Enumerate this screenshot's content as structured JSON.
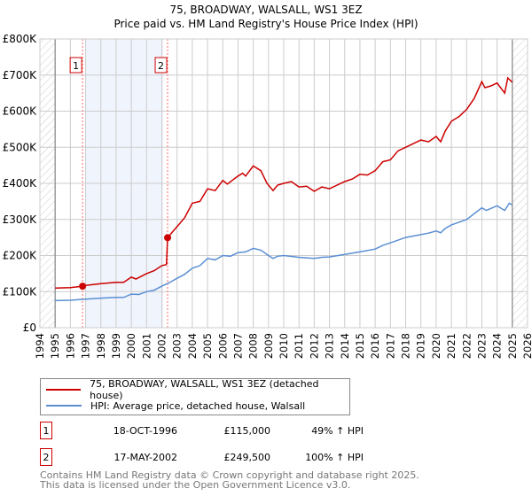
{
  "chart_data": {
    "type": "line",
    "title": "75, BROADWAY, WALSALL, WS1 3EZ",
    "subtitle": "Price paid vs. HM Land Registry's House Price Index (HPI)",
    "xlim": [
      1994,
      2026
    ],
    "ylim": [
      0,
      800000
    ],
    "x_ticks": [
      "1994",
      "1995",
      "1996",
      "1997",
      "1998",
      "1999",
      "2000",
      "2001",
      "2002",
      "2003",
      "2004",
      "2005",
      "2006",
      "2007",
      "2008",
      "2009",
      "2010",
      "2011",
      "2012",
      "2013",
      "2014",
      "2015",
      "2016",
      "2017",
      "2018",
      "2019",
      "2020",
      "2021",
      "2022",
      "2023",
      "2024",
      "2025",
      "2026"
    ],
    "y_ticks": [
      {
        "value": 0,
        "label": "£0"
      },
      {
        "value": 100000,
        "label": "£100K"
      },
      {
        "value": 200000,
        "label": "£200K"
      },
      {
        "value": 300000,
        "label": "£300K"
      },
      {
        "value": 400000,
        "label": "£400K"
      },
      {
        "value": 500000,
        "label": "£500K"
      },
      {
        "value": 600000,
        "label": "£600K"
      },
      {
        "value": 700000,
        "label": "£700K"
      },
      {
        "value": 800000,
        "label": "£800K"
      }
    ],
    "grid": true,
    "data_range": [
      1995,
      2025
    ],
    "shaded_period": [
      1997,
      2002.1
    ],
    "series": [
      {
        "name": "75, BROADWAY, WALSALL, WS1 3EZ (detached house)",
        "color": "#cc0000",
        "points": [
          [
            1995,
            110
          ],
          [
            1996,
            111
          ],
          [
            1996.8,
            115
          ],
          [
            1997,
            117
          ],
          [
            1998,
            122
          ],
          [
            1999,
            126
          ],
          [
            1999.5,
            126
          ],
          [
            2000,
            140
          ],
          [
            2000.3,
            135
          ],
          [
            2001,
            150
          ],
          [
            2001.5,
            158
          ],
          [
            2002,
            172
          ],
          [
            2002.3,
            175
          ],
          [
            2002.38,
            249.5
          ],
          [
            2003,
            280
          ],
          [
            2003.5,
            305
          ],
          [
            2004,
            345
          ],
          [
            2004.5,
            350
          ],
          [
            2005,
            385
          ],
          [
            2005.5,
            380
          ],
          [
            2006,
            408
          ],
          [
            2006.3,
            398
          ],
          [
            2007,
            420
          ],
          [
            2007.3,
            428
          ],
          [
            2007.5,
            420
          ],
          [
            2008,
            448
          ],
          [
            2008.5,
            435
          ],
          [
            2008.9,
            400
          ],
          [
            2009.3,
            380
          ],
          [
            2009.6,
            395
          ],
          [
            2010,
            400
          ],
          [
            2010.5,
            405
          ],
          [
            2011,
            390
          ],
          [
            2011.5,
            392
          ],
          [
            2012,
            378
          ],
          [
            2012.5,
            390
          ],
          [
            2013,
            385
          ],
          [
            2013.5,
            395
          ],
          [
            2014,
            405
          ],
          [
            2014.5,
            412
          ],
          [
            2015,
            425
          ],
          [
            2015.5,
            423
          ],
          [
            2016,
            435
          ],
          [
            2016.5,
            460
          ],
          [
            2017,
            465
          ],
          [
            2017.5,
            490
          ],
          [
            2018,
            500
          ],
          [
            2018.5,
            510
          ],
          [
            2019,
            520
          ],
          [
            2019.5,
            515
          ],
          [
            2020,
            530
          ],
          [
            2020.3,
            515
          ],
          [
            2020.6,
            545
          ],
          [
            2021,
            572
          ],
          [
            2021.5,
            585
          ],
          [
            2022,
            605
          ],
          [
            2022.5,
            635
          ],
          [
            2023,
            682
          ],
          [
            2023.2,
            665
          ],
          [
            2023.6,
            670
          ],
          [
            2024,
            678
          ],
          [
            2024.5,
            650
          ],
          [
            2024.7,
            692
          ],
          [
            2025,
            680
          ]
        ]
      },
      {
        "name": "HPI: Average price, detached house, Walsall",
        "color": "#5b8fd4",
        "points": [
          [
            1995,
            75
          ],
          [
            1996,
            76
          ],
          [
            1997,
            79
          ],
          [
            1998,
            82
          ],
          [
            1999,
            84
          ],
          [
            1999.5,
            84
          ],
          [
            2000,
            93
          ],
          [
            2000.5,
            92
          ],
          [
            2001,
            100
          ],
          [
            2001.5,
            104
          ],
          [
            2002,
            115
          ],
          [
            2002.5,
            125
          ],
          [
            2003,
            137
          ],
          [
            2003.5,
            148
          ],
          [
            2004,
            165
          ],
          [
            2004.5,
            172
          ],
          [
            2005,
            192
          ],
          [
            2005.5,
            188
          ],
          [
            2006,
            200
          ],
          [
            2006.5,
            198
          ],
          [
            2007,
            208
          ],
          [
            2007.5,
            210
          ],
          [
            2008,
            220
          ],
          [
            2008.5,
            215
          ],
          [
            2009,
            200
          ],
          [
            2009.3,
            192
          ],
          [
            2009.6,
            198
          ],
          [
            2010,
            200
          ],
          [
            2011,
            195
          ],
          [
            2012,
            192
          ],
          [
            2012.5,
            195
          ],
          [
            2013,
            196
          ],
          [
            2014,
            203
          ],
          [
            2015,
            210
          ],
          [
            2016,
            218
          ],
          [
            2016.5,
            228
          ],
          [
            2017,
            235
          ],
          [
            2018,
            250
          ],
          [
            2019,
            258
          ],
          [
            2019.5,
            262
          ],
          [
            2020,
            268
          ],
          [
            2020.3,
            263
          ],
          [
            2020.6,
            275
          ],
          [
            2021,
            285
          ],
          [
            2022,
            300
          ],
          [
            2023,
            332
          ],
          [
            2023.3,
            325
          ],
          [
            2024,
            338
          ],
          [
            2024.5,
            325
          ],
          [
            2024.8,
            345
          ],
          [
            2025,
            340
          ]
        ]
      }
    ],
    "y_unit": "thousands GBP",
    "sales": [
      {
        "num": "1",
        "x": 1996.8,
        "value": 115,
        "date": "18-OCT-1996",
        "price": "£115,000",
        "hpi": "49% ↑ HPI"
      },
      {
        "num": "2",
        "x": 2002.38,
        "value": 249.5,
        "date": "17-MAY-2002",
        "price": "£249,500",
        "hpi": "100% ↑ HPI"
      }
    ]
  },
  "legend": {
    "red_label": "75, BROADWAY, WALSALL, WS1 3EZ (detached house)",
    "blue_label": "HPI: Average price, detached house, Walsall"
  },
  "footer": {
    "line1": "Contains HM Land Registry data © Crown copyright and database right 2025.",
    "line2": "This data is licensed under the Open Government Licence v3.0."
  },
  "colors": {
    "red": "#cc0000",
    "blue": "#5b8fd4",
    "shade": "#f0f4fc",
    "grid": "#cccccc"
  }
}
